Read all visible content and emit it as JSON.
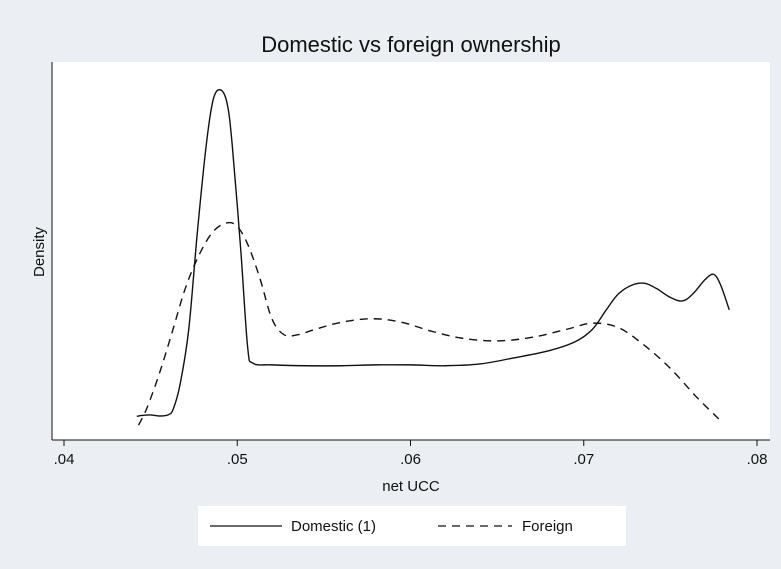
{
  "chart_data": {
    "type": "line",
    "title": "Domestic vs foreign ownership",
    "xlabel": "net UCC",
    "ylabel": "Density",
    "xlim": [
      0.04,
      0.08
    ],
    "xticks": [
      {
        "value": 0.04,
        "label": ".04"
      },
      {
        "value": 0.05,
        "label": ".05"
      },
      {
        "value": 0.06,
        "label": ".06"
      },
      {
        "value": 0.07,
        "label": ".07"
      },
      {
        "value": 0.08,
        "label": ".08"
      }
    ],
    "y_ticks_shown": false,
    "grid": false,
    "legend": "bottom",
    "series": [
      {
        "name": "Domestic (1)",
        "style": "solid",
        "color": "#111111",
        "points": [
          [
            0.0442,
            0.6
          ],
          [
            0.0445,
            0.65
          ],
          [
            0.045,
            0.68
          ],
          [
            0.0455,
            0.62
          ],
          [
            0.046,
            0.68
          ],
          [
            0.0463,
            1.0
          ],
          [
            0.0467,
            2.4
          ],
          [
            0.0472,
            5.5
          ],
          [
            0.0477,
            11.0
          ],
          [
            0.0482,
            15.8
          ],
          [
            0.0486,
            18.4
          ],
          [
            0.049,
            19.0
          ],
          [
            0.0494,
            18.3
          ],
          [
            0.0497,
            16.0
          ],
          [
            0.0502,
            10.0
          ],
          [
            0.0506,
            4.5
          ],
          [
            0.0509,
            3.6
          ],
          [
            0.052,
            3.5
          ],
          [
            0.054,
            3.45
          ],
          [
            0.056,
            3.45
          ],
          [
            0.058,
            3.5
          ],
          [
            0.06,
            3.5
          ],
          [
            0.062,
            3.45
          ],
          [
            0.064,
            3.55
          ],
          [
            0.066,
            3.9
          ],
          [
            0.068,
            4.3
          ],
          [
            0.0695,
            4.8
          ],
          [
            0.0705,
            5.5
          ],
          [
            0.0713,
            6.6
          ],
          [
            0.072,
            7.5
          ],
          [
            0.0728,
            8.0
          ],
          [
            0.0735,
            8.1
          ],
          [
            0.0742,
            7.8
          ],
          [
            0.075,
            7.3
          ],
          [
            0.0757,
            7.1
          ],
          [
            0.0763,
            7.5
          ],
          [
            0.077,
            8.3
          ],
          [
            0.0775,
            8.6
          ],
          [
            0.0779,
            8.0
          ],
          [
            0.0784,
            6.6
          ]
        ]
      },
      {
        "name": "Foreign",
        "style": "dashed",
        "color": "#111111",
        "points": [
          [
            0.0443,
            0.1
          ],
          [
            0.0448,
            1.1
          ],
          [
            0.0455,
            3.0
          ],
          [
            0.0462,
            5.2
          ],
          [
            0.047,
            7.8
          ],
          [
            0.0478,
            9.7
          ],
          [
            0.0486,
            11.0
          ],
          [
            0.0494,
            11.5
          ],
          [
            0.05,
            11.3
          ],
          [
            0.0506,
            10.3
          ],
          [
            0.0513,
            8.4
          ],
          [
            0.052,
            6.1
          ],
          [
            0.0527,
            5.2
          ],
          [
            0.0535,
            5.2
          ],
          [
            0.0545,
            5.5
          ],
          [
            0.056,
            5.9
          ],
          [
            0.0578,
            6.1
          ],
          [
            0.0595,
            5.9
          ],
          [
            0.0612,
            5.4
          ],
          [
            0.063,
            5.0
          ],
          [
            0.065,
            4.85
          ],
          [
            0.067,
            5.05
          ],
          [
            0.069,
            5.5
          ],
          [
            0.0705,
            5.85
          ],
          [
            0.072,
            5.6
          ],
          [
            0.0735,
            4.6
          ],
          [
            0.075,
            3.3
          ],
          [
            0.0765,
            1.7
          ],
          [
            0.0778,
            0.45
          ]
        ]
      }
    ],
    "ylim": [
      0,
      20
    ]
  }
}
